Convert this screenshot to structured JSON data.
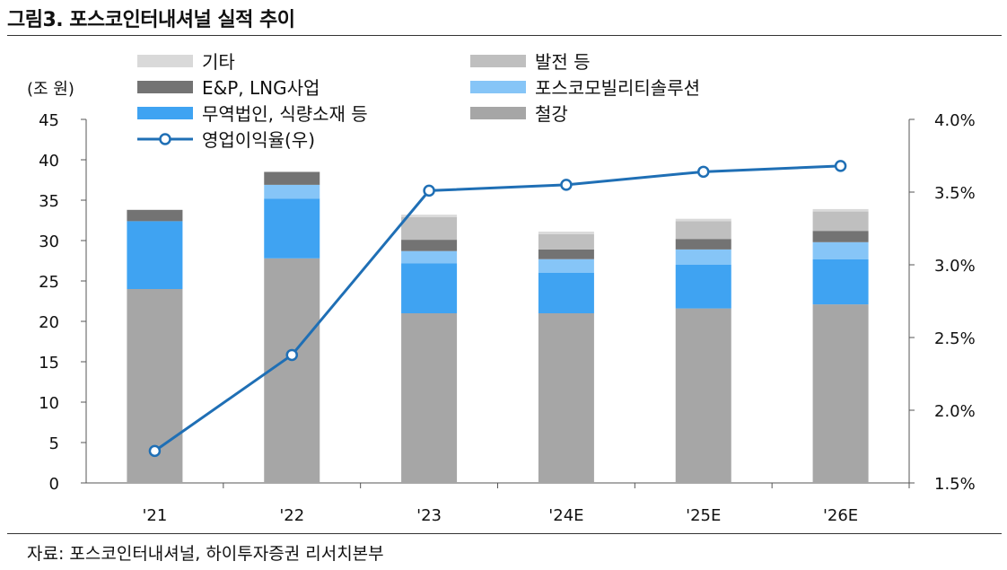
{
  "figure": {
    "title": "그림3. 포스코인터내셔널 실적 추이",
    "source": "자료: 포스코인터내셔널, 하이투자증권 리서치본부"
  },
  "chart_data": {
    "type": "bar",
    "stacked": true,
    "categories": [
      "'21",
      "'22",
      "'23",
      "'24E",
      "'25E",
      "'26E"
    ],
    "y_left": {
      "label": "(조 원)",
      "range": [
        0,
        45
      ],
      "ticks": [
        0,
        5,
        10,
        15,
        20,
        25,
        30,
        35,
        40,
        45
      ]
    },
    "y_right": {
      "range": [
        1.5,
        4.0
      ],
      "ticks": [
        "1.5%",
        "2.0%",
        "2.5%",
        "3.0%",
        "3.5%",
        "4.0%"
      ],
      "tick_values": [
        1.5,
        2.0,
        2.5,
        3.0,
        3.5,
        4.0
      ]
    },
    "series": [
      {
        "name": "철강",
        "color": "#a6a6a6",
        "values": [
          24.0,
          27.8,
          21.0,
          21.0,
          21.6,
          22.1
        ]
      },
      {
        "name": "무역법인, 식량소재 등",
        "color": "#3fa3f2",
        "values": [
          8.4,
          7.4,
          6.2,
          5.0,
          5.4,
          5.6
        ]
      },
      {
        "name": "포스코모빌리티솔루션",
        "color": "#86c5f7",
        "values": [
          0.0,
          1.7,
          1.5,
          1.7,
          1.9,
          2.1
        ]
      },
      {
        "name": "E&P, LNG사업",
        "color": "#737373",
        "values": [
          1.4,
          1.6,
          1.4,
          1.2,
          1.3,
          1.4
        ]
      },
      {
        "name": "발전 등",
        "color": "#bfbfbf",
        "values": [
          0.0,
          0.0,
          2.8,
          1.9,
          2.2,
          2.4
        ]
      },
      {
        "name": "기타",
        "color": "#d9d9d9",
        "values": [
          0.0,
          0.0,
          0.3,
          0.3,
          0.3,
          0.3
        ]
      }
    ],
    "line": {
      "name": "영업이익율(우)",
      "color": "#1f6fb5",
      "values": [
        1.72,
        2.38,
        3.51,
        3.55,
        3.64,
        3.68
      ]
    },
    "legend": {
      "left_column": [
        "기타",
        "E&P, LNG사업",
        "무역법인, 식량소재 등",
        "영업이익율(우)"
      ],
      "right_column": [
        "발전 등",
        "포스코모빌리티솔루션",
        "철강"
      ]
    }
  }
}
